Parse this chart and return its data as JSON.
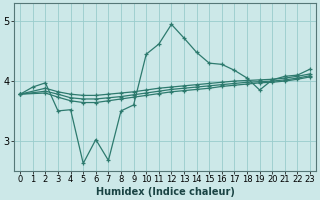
{
  "xlabel": "Humidex (Indice chaleur)",
  "background_color": "#cce8e8",
  "grid_color": "#99cccc",
  "line_color": "#2d7a6e",
  "xlim": [
    -0.5,
    23.5
  ],
  "ylim": [
    2.5,
    5.3
  ],
  "yticks": [
    3,
    4,
    5
  ],
  "xticks": [
    0,
    1,
    2,
    3,
    4,
    5,
    6,
    7,
    8,
    9,
    10,
    11,
    12,
    13,
    14,
    15,
    16,
    17,
    18,
    19,
    20,
    21,
    22,
    23
  ],
  "line1_x": [
    0,
    1,
    2,
    3,
    4,
    5,
    6,
    7,
    8,
    9,
    10,
    11,
    12,
    13,
    14,
    15,
    16,
    17,
    18,
    19,
    20,
    21,
    22,
    23
  ],
  "line1_y": [
    3.78,
    3.9,
    3.97,
    3.5,
    3.52,
    2.62,
    3.02,
    2.67,
    3.5,
    3.6,
    4.45,
    4.62,
    4.95,
    4.72,
    4.48,
    4.3,
    4.28,
    4.18,
    4.05,
    3.85,
    4.02,
    4.08,
    4.1,
    4.2
  ],
  "line2_x": [
    0,
    2,
    3,
    4,
    5,
    6,
    7,
    8,
    9,
    10,
    11,
    12,
    13,
    14,
    15,
    16,
    17,
    18,
    19,
    20,
    21,
    22,
    23
  ],
  "line2_y": [
    3.78,
    3.88,
    3.82,
    3.78,
    3.76,
    3.76,
    3.78,
    3.8,
    3.82,
    3.85,
    3.88,
    3.9,
    3.92,
    3.94,
    3.96,
    3.98,
    4.0,
    4.01,
    4.02,
    4.03,
    4.05,
    4.08,
    4.12
  ],
  "line3_x": [
    0,
    2,
    3,
    4,
    5,
    6,
    7,
    8,
    9,
    10,
    11,
    12,
    13,
    14,
    15,
    16,
    17,
    18,
    19,
    20,
    21,
    22,
    23
  ],
  "line3_y": [
    3.78,
    3.83,
    3.78,
    3.72,
    3.7,
    3.7,
    3.72,
    3.74,
    3.77,
    3.8,
    3.83,
    3.86,
    3.88,
    3.9,
    3.92,
    3.94,
    3.96,
    3.98,
    3.99,
    4.0,
    4.02,
    4.05,
    4.09
  ],
  "line4_x": [
    0,
    2,
    3,
    4,
    5,
    6,
    7,
    8,
    9,
    10,
    11,
    12,
    13,
    14,
    15,
    16,
    17,
    18,
    19,
    20,
    21,
    22,
    23
  ],
  "line4_y": [
    3.78,
    3.8,
    3.73,
    3.67,
    3.64,
    3.64,
    3.67,
    3.7,
    3.73,
    3.76,
    3.79,
    3.82,
    3.84,
    3.86,
    3.88,
    3.91,
    3.93,
    3.95,
    3.97,
    3.98,
    4.0,
    4.03,
    4.07
  ]
}
